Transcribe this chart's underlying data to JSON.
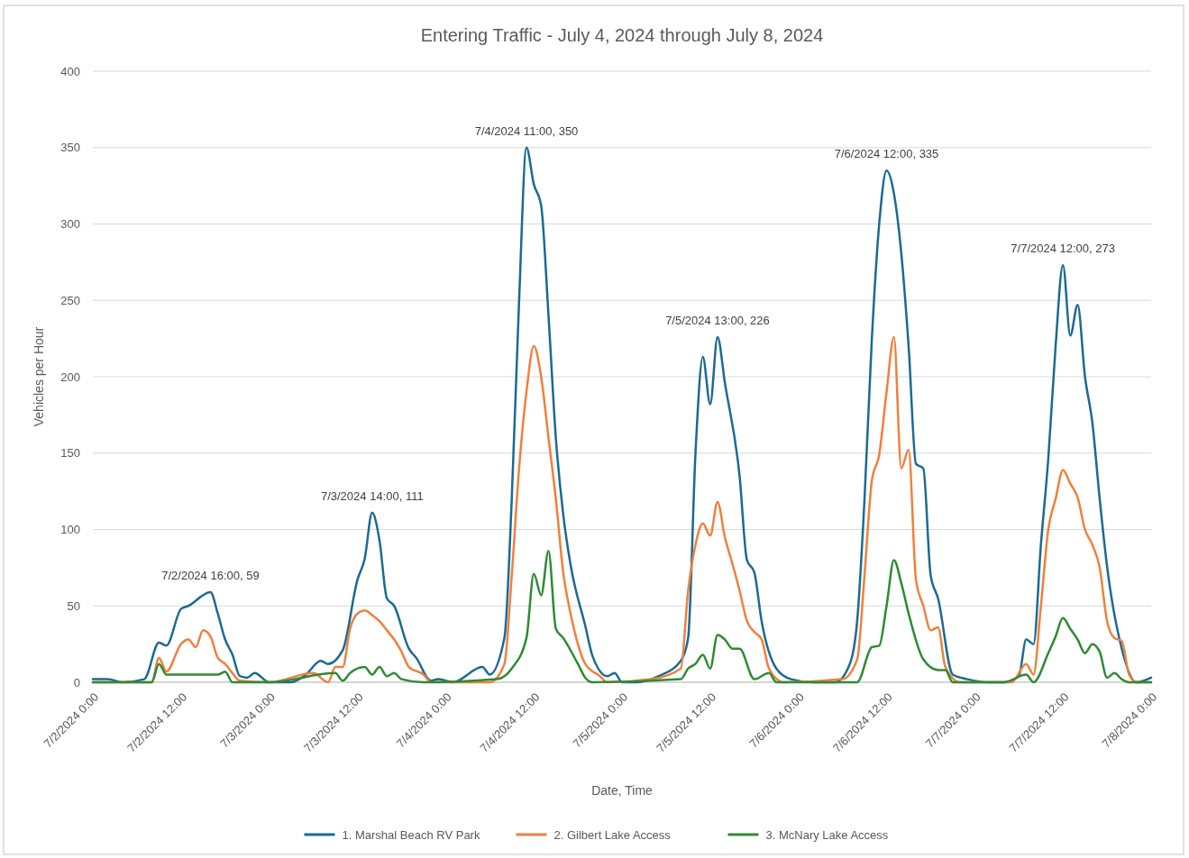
{
  "chart_data": {
    "type": "line",
    "title": "Entering Traffic - July 4, 2024 through July 8, 2024",
    "xlabel": "Date, Time",
    "ylabel": "Vehicles per Hour",
    "xlim": [
      "2024-07-02T00:00",
      "2024-07-08T00:00"
    ],
    "xticks": [
      {
        "value": "2024-07-02T00:00",
        "label": "7/2/2024 0:00"
      },
      {
        "value": "2024-07-02T12:00",
        "label": "7/2/2024 12:00"
      },
      {
        "value": "2024-07-03T00:00",
        "label": "7/3/2024 0:00"
      },
      {
        "value": "2024-07-03T12:00",
        "label": "7/3/2024 12:00"
      },
      {
        "value": "2024-07-04T00:00",
        "label": "7/4/2024 0:00"
      },
      {
        "value": "2024-07-04T12:00",
        "label": "7/4/2024 12:00"
      },
      {
        "value": "2024-07-05T00:00",
        "label": "7/5/2024 0:00"
      },
      {
        "value": "2024-07-05T12:00",
        "label": "7/5/2024 12:00"
      },
      {
        "value": "2024-07-06T00:00",
        "label": "7/6/2024 0:00"
      },
      {
        "value": "2024-07-06T12:00",
        "label": "7/6/2024 12:00"
      },
      {
        "value": "2024-07-07T00:00",
        "label": "7/7/2024 0:00"
      },
      {
        "value": "2024-07-07T12:00",
        "label": "7/7/2024 12:00"
      },
      {
        "value": "2024-07-08T00:00",
        "label": "7/8/2024 0:00"
      }
    ],
    "ylim": [
      0,
      400
    ],
    "yticks": [
      0,
      50,
      100,
      150,
      200,
      250,
      300,
      350,
      400
    ],
    "grid": "y",
    "legend": "bottom",
    "marker": "none",
    "line_style": "solid",
    "series": [
      {
        "name": "1. Marshal Beach RV Park",
        "color": "#1b6a93",
        "x": [
          "2024-07-02T00:00",
          "2024-07-02T02:00",
          "2024-07-02T04:00",
          "2024-07-02T07:00",
          "2024-07-02T09:00",
          "2024-07-02T10:00",
          "2024-07-02T12:00",
          "2024-07-02T13:00",
          "2024-07-02T16:00",
          "2024-07-02T17:00",
          "2024-07-02T18:00",
          "2024-07-02T19:00",
          "2024-07-02T20:00",
          "2024-07-02T21:00",
          "2024-07-02T22:00",
          "2024-07-03T00:00",
          "2024-07-03T03:00",
          "2024-07-03T05:00",
          "2024-07-03T07:00",
          "2024-07-03T08:00",
          "2024-07-03T10:00",
          "2024-07-03T12:00",
          "2024-07-03T13:00",
          "2024-07-03T14:00",
          "2024-07-03T15:00",
          "2024-07-03T16:00",
          "2024-07-03T17:00",
          "2024-07-03T19:00",
          "2024-07-03T20:00",
          "2024-07-03T22:00",
          "2024-07-03T23:00",
          "2024-07-04T01:00",
          "2024-07-04T05:00",
          "2024-07-04T06:00",
          "2024-07-04T08:00",
          "2024-07-04T09:00",
          "2024-07-04T10:00",
          "2024-07-04T11:00",
          "2024-07-04T12:00",
          "2024-07-04T13:00",
          "2024-07-04T14:00",
          "2024-07-04T15:00",
          "2024-07-04T16:00",
          "2024-07-04T17:00",
          "2024-07-04T19:00",
          "2024-07-04T20:00",
          "2024-07-04T22:00",
          "2024-07-04T23:00",
          "2024-07-05T00:00",
          "2024-07-05T02:00",
          "2024-07-05T05:00",
          "2024-07-05T08:00",
          "2024-07-05T09:00",
          "2024-07-05T10:00",
          "2024-07-05T11:00",
          "2024-07-05T12:00",
          "2024-07-05T13:00",
          "2024-07-05T14:00",
          "2024-07-05T16:00",
          "2024-07-05T17:00",
          "2024-07-05T18:00",
          "2024-07-05T19:00",
          "2024-07-05T21:00",
          "2024-07-05T23:00",
          "2024-07-06T02:00",
          "2024-07-06T05:00",
          "2024-07-06T07:00",
          "2024-07-06T08:00",
          "2024-07-06T09:00",
          "2024-07-06T10:00",
          "2024-07-06T11:00",
          "2024-07-06T12:00",
          "2024-07-06T13:00",
          "2024-07-06T14:00",
          "2024-07-06T15:00",
          "2024-07-06T16:00",
          "2024-07-06T17:00",
          "2024-07-06T18:00",
          "2024-07-06T19:00",
          "2024-07-06T21:00",
          "2024-07-06T23:00",
          "2024-07-07T02:00",
          "2024-07-07T04:00",
          "2024-07-07T06:00",
          "2024-07-07T07:00",
          "2024-07-07T08:00",
          "2024-07-07T09:00",
          "2024-07-07T10:00",
          "2024-07-07T11:00",
          "2024-07-07T12:00",
          "2024-07-07T13:00",
          "2024-07-07T14:00",
          "2024-07-07T15:00",
          "2024-07-07T16:00",
          "2024-07-07T17:00",
          "2024-07-07T18:00",
          "2024-07-07T20:00",
          "2024-07-07T22:00",
          "2024-07-08T00:00"
        ],
        "values": [
          2,
          2,
          0,
          2,
          26,
          24,
          48,
          50,
          59,
          45,
          28,
          18,
          4,
          3,
          6,
          0,
          0,
          5,
          14,
          12,
          21,
          67,
          81,
          111,
          93,
          55,
          50,
          22,
          16,
          1,
          2,
          0,
          10,
          5,
          29,
          120,
          250,
          350,
          326,
          312,
          240,
          160,
          110,
          77,
          37,
          17,
          4,
          6,
          0,
          0,
          4,
          14,
          29,
          150,
          213,
          182,
          226,
          196,
          135,
          80,
          72,
          40,
          9,
          2,
          0,
          0,
          12,
          40,
          120,
          225,
          300,
          335,
          320,
          281,
          220,
          143,
          140,
          70,
          55,
          5,
          2,
          0,
          0,
          4,
          28,
          25,
          90,
          146,
          220,
          273,
          227,
          247,
          200,
          170,
          120,
          76,
          22,
          0,
          3
        ]
      },
      {
        "name": "2. Gilbert Lake Access",
        "color": "#f0803c",
        "x": [
          "2024-07-02T00:00",
          "2024-07-02T08:00",
          "2024-07-02T09:00",
          "2024-07-02T10:00",
          "2024-07-02T12:00",
          "2024-07-02T13:00",
          "2024-07-02T14:00",
          "2024-07-02T15:00",
          "2024-07-02T16:00",
          "2024-07-02T17:00",
          "2024-07-02T18:00",
          "2024-07-02T19:00",
          "2024-07-02T20:00",
          "2024-07-03T00:00",
          "2024-07-03T06:00",
          "2024-07-03T08:00",
          "2024-07-03T09:00",
          "2024-07-03T10:00",
          "2024-07-03T11:00",
          "2024-07-03T12:00",
          "2024-07-03T13:00",
          "2024-07-03T14:00",
          "2024-07-03T15:00",
          "2024-07-03T16:00",
          "2024-07-03T17:00",
          "2024-07-03T18:00",
          "2024-07-03T19:00",
          "2024-07-03T21:00",
          "2024-07-03T22:00",
          "2024-07-04T06:00",
          "2024-07-04T08:00",
          "2024-07-04T09:00",
          "2024-07-04T10:00",
          "2024-07-04T11:00",
          "2024-07-04T12:00",
          "2024-07-04T13:00",
          "2024-07-04T14:00",
          "2024-07-04T15:00",
          "2024-07-04T16:00",
          "2024-07-04T17:00",
          "2024-07-04T18:00",
          "2024-07-04T19:00",
          "2024-07-04T21:00",
          "2024-07-04T22:00",
          "2024-07-05T04:00",
          "2024-07-05T08:00",
          "2024-07-05T09:00",
          "2024-07-05T10:00",
          "2024-07-05T11:00",
          "2024-07-05T12:00",
          "2024-07-05T13:00",
          "2024-07-05T14:00",
          "2024-07-05T15:00",
          "2024-07-05T16:00",
          "2024-07-05T17:00",
          "2024-07-05T18:00",
          "2024-07-05T19:00",
          "2024-07-05T20:00",
          "2024-07-05T22:00",
          "2024-07-06T06:00",
          "2024-07-06T08:00",
          "2024-07-06T09:00",
          "2024-07-06T10:00",
          "2024-07-06T11:00",
          "2024-07-06T12:00",
          "2024-07-06T13:00",
          "2024-07-06T14:00",
          "2024-07-06T15:00",
          "2024-07-06T16:00",
          "2024-07-06T17:00",
          "2024-07-06T18:00",
          "2024-07-06T19:00",
          "2024-07-06T20:00",
          "2024-07-06T22:00",
          "2024-07-07T05:00",
          "2024-07-07T07:00",
          "2024-07-07T08:00",
          "2024-07-07T09:00",
          "2024-07-07T10:00",
          "2024-07-07T11:00",
          "2024-07-07T12:00",
          "2024-07-07T13:00",
          "2024-07-07T14:00",
          "2024-07-07T15:00",
          "2024-07-07T16:00",
          "2024-07-07T17:00",
          "2024-07-07T18:00",
          "2024-07-07T19:00",
          "2024-07-07T20:00",
          "2024-07-07T21:00",
          "2024-07-07T22:00",
          "2024-07-08T00:00"
        ],
        "values": [
          0,
          0,
          16,
          7,
          25,
          28,
          23,
          34,
          30,
          16,
          12,
          6,
          1,
          0,
          6,
          0,
          10,
          10,
          35,
          45,
          47,
          44,
          40,
          34,
          28,
          20,
          10,
          5,
          0,
          0,
          12,
          70,
          140,
          190,
          220,
          200,
          160,
          120,
          72,
          45,
          25,
          12,
          4,
          0,
          2,
          9,
          60,
          90,
          104,
          96,
          118,
          95,
          78,
          60,
          40,
          33,
          28,
          9,
          0,
          2,
          15,
          70,
          132,
          149,
          190,
          226,
          140,
          152,
          67,
          50,
          34,
          36,
          10,
          0,
          0,
          12,
          5,
          50,
          100,
          120,
          139,
          130,
          121,
          100,
          90,
          75,
          40,
          29,
          27,
          5,
          0,
          0
        ]
      },
      {
        "name": "3. McNary Lake Access",
        "color": "#2f8a34",
        "x": [
          "2024-07-02T00:00",
          "2024-07-02T08:00",
          "2024-07-02T09:00",
          "2024-07-02T10:00",
          "2024-07-02T11:00",
          "2024-07-02T17:00",
          "2024-07-02T18:00",
          "2024-07-02T19:00",
          "2024-07-03T00:00",
          "2024-07-03T09:00",
          "2024-07-03T10:00",
          "2024-07-03T11:00",
          "2024-07-03T13:00",
          "2024-07-03T14:00",
          "2024-07-03T15:00",
          "2024-07-03T16:00",
          "2024-07-03T17:00",
          "2024-07-03T18:00",
          "2024-07-03T21:00",
          "2024-07-04T07:00",
          "2024-07-04T09:00",
          "2024-07-04T11:00",
          "2024-07-04T12:00",
          "2024-07-04T13:00",
          "2024-07-04T14:00",
          "2024-07-04T15:00",
          "2024-07-04T16:00",
          "2024-07-04T18:00",
          "2024-07-04T19:00",
          "2024-07-04T20:00",
          "2024-07-05T08:00",
          "2024-07-05T09:00",
          "2024-07-05T10:00",
          "2024-07-05T11:00",
          "2024-07-05T12:00",
          "2024-07-05T13:00",
          "2024-07-05T14:00",
          "2024-07-05T15:00",
          "2024-07-05T16:00",
          "2024-07-05T18:00",
          "2024-07-05T20:00",
          "2024-07-05T21:00",
          "2024-07-06T08:00",
          "2024-07-06T10:00",
          "2024-07-06T11:00",
          "2024-07-06T12:00",
          "2024-07-06T13:00",
          "2024-07-06T14:00",
          "2024-07-06T15:00",
          "2024-07-06T17:00",
          "2024-07-06T19:00",
          "2024-07-06T20:00",
          "2024-07-06T21:00",
          "2024-07-07T04:00",
          "2024-07-07T07:00",
          "2024-07-07T08:00",
          "2024-07-07T10:00",
          "2024-07-07T11:00",
          "2024-07-07T12:00",
          "2024-07-07T13:00",
          "2024-07-07T14:00",
          "2024-07-07T15:00",
          "2024-07-07T16:00",
          "2024-07-07T17:00",
          "2024-07-07T18:00",
          "2024-07-07T19:00",
          "2024-07-07T20:00",
          "2024-07-07T21:00",
          "2024-07-08T00:00"
        ],
        "values": [
          0,
          0,
          12,
          5,
          5,
          5,
          7,
          0,
          0,
          6,
          1,
          6,
          10,
          5,
          10,
          4,
          6,
          2,
          0,
          2,
          9,
          29,
          71,
          57,
          86,
          35,
          29,
          12,
          3,
          0,
          2,
          9,
          12,
          18,
          9,
          31,
          28,
          22,
          22,
          2,
          6,
          0,
          0,
          23,
          24,
          50,
          80,
          65,
          45,
          15,
          8,
          8,
          0,
          0,
          5,
          0,
          19,
          30,
          42,
          35,
          28,
          19,
          25,
          20,
          3,
          6,
          2,
          0,
          0
        ]
      }
    ],
    "annotations": [
      {
        "text": "7/2/2024 16:00, 59",
        "x": "2024-07-02T16:00",
        "y": 59
      },
      {
        "text": "7/3/2024 14:00, 111",
        "x": "2024-07-03T14:00",
        "y": 111
      },
      {
        "text": "7/4/2024 11:00, 350",
        "x": "2024-07-04T11:00",
        "y": 350
      },
      {
        "text": "7/5/2024 13:00, 226",
        "x": "2024-07-05T13:00",
        "y": 226
      },
      {
        "text": "7/6/2024 12:00, 335",
        "x": "2024-07-06T12:00",
        "y": 335
      },
      {
        "text": "7/7/2024 12:00, 273",
        "x": "2024-07-07T12:00",
        "y": 273
      }
    ]
  }
}
